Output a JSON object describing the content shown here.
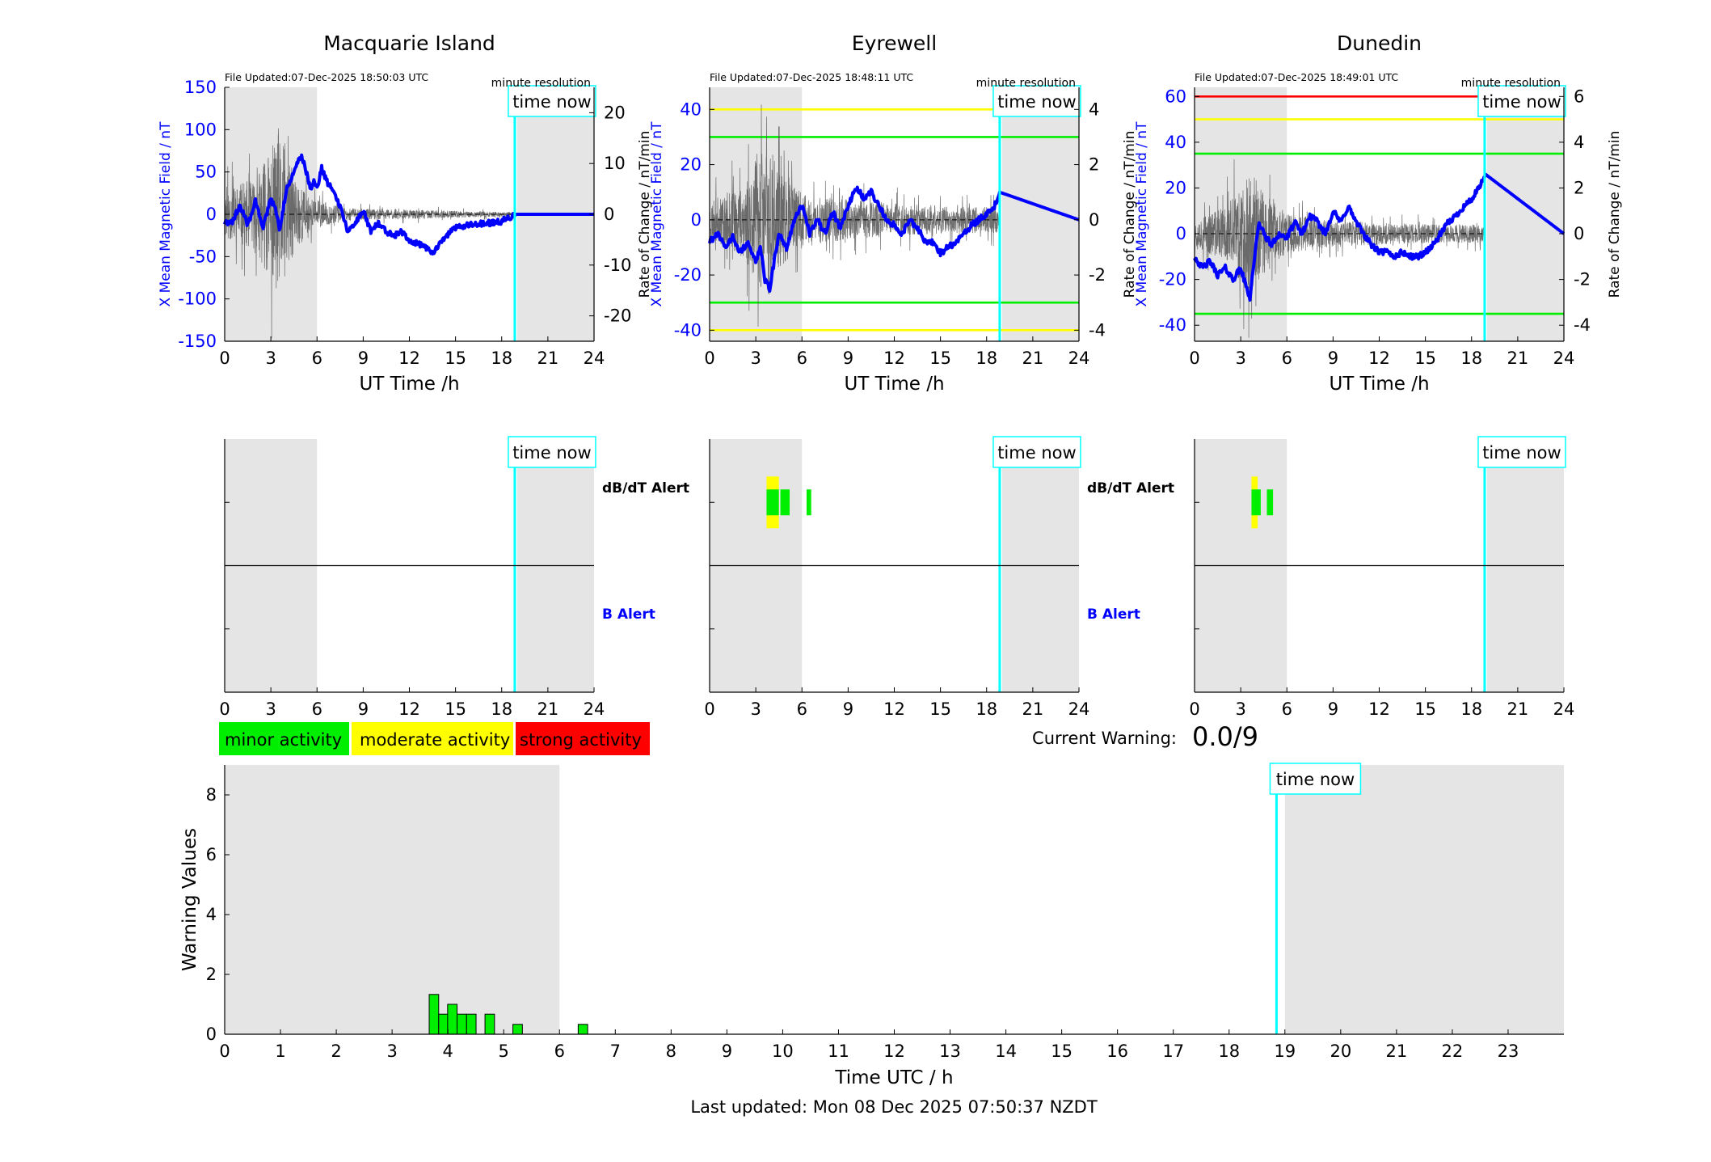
{
  "colors": {
    "x_field": "#0000ff",
    "rate": "#555555",
    "now_line": "#00ffff",
    "night_shade": "#e5e5e5",
    "minor": "#00ee00",
    "moderate": "#ffff00",
    "strong": "#ff0000",
    "alert_b_label": "#0000ff"
  },
  "legend": {
    "minor": "minor activity",
    "moderate": "moderate activity",
    "strong": "strong activity"
  },
  "current_warning": {
    "label": "Current Warning:",
    "value": "0.0/9"
  },
  "last_updated": "Last updated: Mon 08 Dec 2025 07:50:37 NZDT",
  "common": {
    "xlabel": "UT Time /h",
    "resolution": "minute resolution",
    "now_label": "time now",
    "now_hour": 18.85,
    "xticks": [
      0,
      3,
      6,
      9,
      12,
      15,
      18,
      21,
      24
    ],
    "alert_db_label": "dB/dT Alert",
    "alert_b_label": "B Alert"
  },
  "chart_data": [
    {
      "type": "line",
      "title": "Macquarie Island",
      "file_updated": "File Updated:07-Dec-2025 18:50:03 UTC",
      "ylabel": "X Mean Magnetic Field / nT",
      "y2label": "Rate of Change / nT/min",
      "xlim": [
        0,
        24
      ],
      "ylim": [
        -150,
        150
      ],
      "y2lim": [
        -25,
        25
      ],
      "yticks": [
        -150,
        -100,
        -50,
        0,
        50,
        100,
        150
      ],
      "y2ticks": [
        -20,
        -10,
        0,
        10,
        20
      ],
      "shade": [
        [
          0,
          6
        ],
        [
          19,
          24
        ]
      ],
      "thresholds": [],
      "x_field": {
        "x": [
          0,
          0.5,
          1,
          1.5,
          2,
          2.5,
          3,
          3.3,
          3.6,
          4,
          4.3,
          4.6,
          4.8,
          5,
          5.3,
          5.6,
          5.8,
          6,
          6.3,
          6.6,
          7,
          7.5,
          8,
          8.5,
          9,
          9.5,
          10,
          10.5,
          11,
          11.5,
          12,
          12.5,
          13,
          13.5,
          14,
          14.5,
          15,
          15.5,
          16,
          16.5,
          17,
          17.5,
          18,
          18.6,
          18.9,
          24
        ],
        "y": [
          -10,
          -8,
          10,
          -12,
          15,
          -15,
          18,
          5,
          -20,
          30,
          40,
          55,
          65,
          70,
          50,
          30,
          40,
          30,
          55,
          40,
          30,
          10,
          -20,
          -10,
          5,
          -20,
          -10,
          -20,
          -25,
          -20,
          -30,
          -35,
          -38,
          -45,
          -35,
          -25,
          -15,
          -15,
          -12,
          -12,
          -10,
          -10,
          -8,
          -3,
          0,
          0
        ]
      },
      "rate": {
        "seed": 11,
        "amplitude_env": [
          [
            0,
            6
          ],
          [
            2,
            9
          ],
          [
            3.5,
            20
          ],
          [
            4.5,
            10
          ],
          [
            5.5,
            4
          ],
          [
            8,
            1.5
          ],
          [
            18.9,
            0.5
          ]
        ]
      },
      "alerts_db": [],
      "alerts_b": []
    },
    {
      "type": "line",
      "title": "Eyrewell",
      "file_updated": "File Updated:07-Dec-2025 18:48:11 UTC",
      "ylabel": "X Mean Magnetic Field / nT",
      "y2label": "Rate of Change / nT/min",
      "xlim": [
        0,
        24
      ],
      "ylim": [
        -44,
        48
      ],
      "y2lim": [
        -4.4,
        4.8
      ],
      "yticks": [
        -40,
        -20,
        0,
        20,
        40
      ],
      "y2ticks": [
        -4,
        -2,
        0,
        2,
        4
      ],
      "shade": [
        [
          0,
          6
        ],
        [
          19,
          24
        ]
      ],
      "thresholds": [
        {
          "y": 40,
          "color": "#ffff00"
        },
        {
          "y": 30,
          "color": "#00ee00"
        },
        {
          "y": -30,
          "color": "#00ee00"
        },
        {
          "y": -40,
          "color": "#ffff00"
        }
      ],
      "x_field": {
        "x": [
          0,
          0.5,
          1,
          1.5,
          2,
          2.5,
          3,
          3.3,
          3.6,
          3.9,
          4.2,
          4.5,
          5,
          5.5,
          6,
          6.5,
          7,
          7.5,
          8,
          8.5,
          9,
          9.5,
          10,
          10.5,
          11,
          11.5,
          12,
          12.5,
          13,
          13.5,
          14,
          14.5,
          15,
          15.5,
          16,
          16.5,
          17,
          17.5,
          18,
          18.5,
          18.85,
          24
        ],
        "y": [
          -8,
          -5,
          -10,
          -6,
          -12,
          -8,
          -15,
          -10,
          -22,
          -25,
          -15,
          -5,
          -10,
          0,
          5,
          -5,
          0,
          -5,
          3,
          -3,
          5,
          12,
          8,
          10,
          5,
          0,
          -2,
          -5,
          0,
          -3,
          -8,
          -8,
          -12,
          -10,
          -8,
          -5,
          -2,
          0,
          2,
          5,
          10,
          0
        ]
      },
      "rate": {
        "seed": 23,
        "amplitude_env": [
          [
            0,
            0.8
          ],
          [
            2,
            1.6
          ],
          [
            3.8,
            3.6
          ],
          [
            4.5,
            2.2
          ],
          [
            6,
            1.2
          ],
          [
            9,
            0.9
          ],
          [
            16,
            0.6
          ],
          [
            18.85,
            0.6
          ]
        ]
      },
      "alerts_db": [
        {
          "x0": 3.7,
          "x1": 4.5,
          "color": "#ffff00",
          "tall": true
        },
        {
          "x0": 3.7,
          "x1": 4.5,
          "color": "#00ee00",
          "tall": false
        },
        {
          "x0": 4.6,
          "x1": 5.2,
          "color": "#00ee00",
          "tall": false
        },
        {
          "x0": 6.3,
          "x1": 6.6,
          "color": "#00ee00",
          "tall": false
        }
      ],
      "alerts_b": []
    },
    {
      "type": "line",
      "title": "Dunedin",
      "file_updated": "File Updated:07-Dec-2025 18:49:01 UTC",
      "ylabel": "X Mean Magnetic Field / nT",
      "y2label": "Rate of Change / nT/min",
      "xlim": [
        0,
        24
      ],
      "ylim": [
        -47,
        64
      ],
      "y2lim": [
        -4.7,
        6.4
      ],
      "yticks": [
        -40,
        -20,
        0,
        20,
        40,
        60
      ],
      "y2ticks": [
        -4,
        -2,
        0,
        2,
        4,
        6
      ],
      "shade": [
        [
          0,
          6
        ],
        [
          19,
          24
        ]
      ],
      "thresholds": [
        {
          "y": 60,
          "color": "#ff0000"
        },
        {
          "y": 50,
          "color": "#ffff00"
        },
        {
          "y": 35,
          "color": "#00ee00"
        },
        {
          "y": -35,
          "color": "#00ee00"
        }
      ],
      "x_field": {
        "x": [
          0,
          0.5,
          1,
          1.5,
          2,
          2.5,
          3,
          3.3,
          3.6,
          3.9,
          4.2,
          4.5,
          5,
          5.5,
          6,
          6.5,
          7,
          7.5,
          8,
          8.5,
          9,
          9.5,
          10,
          10.5,
          11,
          11.5,
          12,
          12.5,
          13,
          13.5,
          14,
          14.5,
          15,
          15.5,
          16,
          16.5,
          17,
          17.5,
          18,
          18.5,
          18.9,
          24
        ],
        "y": [
          -10,
          -15,
          -12,
          -18,
          -15,
          -20,
          -15,
          -22,
          -28,
          -10,
          5,
          0,
          -5,
          0,
          -2,
          5,
          0,
          8,
          5,
          0,
          10,
          5,
          12,
          5,
          0,
          -5,
          -8,
          -8,
          -10,
          -8,
          -10,
          -10,
          -8,
          -5,
          0,
          5,
          8,
          12,
          15,
          20,
          26,
          0
        ]
      },
      "rate": {
        "seed": 37,
        "amplitude_env": [
          [
            0,
            0.8
          ],
          [
            2,
            1.5
          ],
          [
            3.7,
            3.4
          ],
          [
            4.5,
            2.2
          ],
          [
            6,
            1.1
          ],
          [
            9,
            0.7
          ],
          [
            16,
            0.5
          ],
          [
            18.9,
            0.5
          ]
        ]
      },
      "alerts_db": [
        {
          "x0": 3.7,
          "x1": 4.1,
          "color": "#ffff00",
          "tall": true
        },
        {
          "x0": 3.7,
          "x1": 4.3,
          "color": "#00ee00",
          "tall": false
        },
        {
          "x0": 4.7,
          "x1": 5.1,
          "color": "#00ee00",
          "tall": false
        }
      ],
      "alerts_b": []
    },
    {
      "type": "bar",
      "xlabel": "Time UTC / h",
      "ylabel": "Warning Values",
      "xlim": [
        0,
        24
      ],
      "ylim": [
        0,
        9
      ],
      "xticks": [
        0,
        1,
        2,
        3,
        4,
        5,
        6,
        7,
        8,
        9,
        10,
        11,
        12,
        13,
        14,
        15,
        16,
        17,
        18,
        19,
        20,
        21,
        22,
        23
      ],
      "yticks": [
        0,
        2,
        4,
        6,
        8
      ],
      "shade": [
        [
          0,
          6
        ],
        [
          19,
          24
        ]
      ],
      "now_hour": 18.85,
      "bar_width": 0.17,
      "x": [
        3.75,
        3.92,
        4.08,
        4.25,
        4.42,
        4.75,
        5.25,
        6.42
      ],
      "values": [
        1.33,
        0.67,
        1.0,
        0.67,
        0.67,
        0.67,
        0.33,
        0.33
      ]
    }
  ]
}
